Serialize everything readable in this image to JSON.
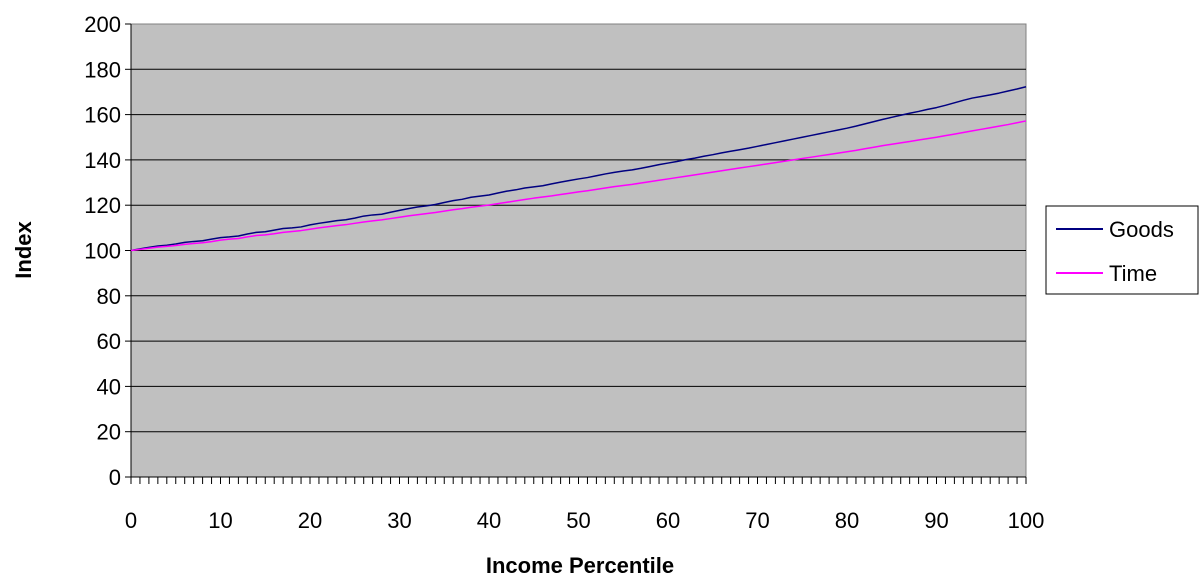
{
  "chart_data": {
    "type": "line",
    "xlabel": "Income Percentile",
    "ylabel": "Index",
    "xlim": [
      0,
      100
    ],
    "ylim": [
      0,
      200
    ],
    "x_ticks": [
      "0",
      "10",
      "20",
      "30",
      "40",
      "50",
      "60",
      "70",
      "80",
      "90",
      "100"
    ],
    "y_ticks": [
      "0",
      "20",
      "40",
      "60",
      "80",
      "100",
      "120",
      "140",
      "160",
      "180",
      "200"
    ],
    "x_minor_tick_step": 1,
    "grid": "horizontal",
    "plot_background": "#c0c0c0",
    "legend_position": "right",
    "x": [
      0,
      1,
      2,
      3,
      4,
      5,
      6,
      7,
      8,
      9,
      10,
      11,
      12,
      13,
      14,
      15,
      16,
      17,
      18,
      19,
      20,
      21,
      22,
      23,
      24,
      25,
      26,
      27,
      28,
      29,
      30,
      31,
      32,
      33,
      34,
      35,
      36,
      37,
      38,
      39,
      40,
      41,
      42,
      43,
      44,
      45,
      46,
      47,
      48,
      49,
      50,
      51,
      52,
      53,
      54,
      55,
      56,
      57,
      58,
      59,
      60,
      61,
      62,
      63,
      64,
      65,
      66,
      67,
      68,
      69,
      70,
      71,
      72,
      73,
      74,
      75,
      76,
      77,
      78,
      79,
      80,
      81,
      82,
      83,
      84,
      85,
      86,
      87,
      88,
      89,
      90,
      91,
      92,
      93,
      94,
      95,
      96,
      97,
      98,
      99,
      100
    ],
    "series": [
      {
        "name": "Goods",
        "color": "#000080",
        "values": [
          100.0,
          100.7,
          101.4,
          102.0,
          102.3,
          102.9,
          103.6,
          104.0,
          104.3,
          105.0,
          105.7,
          106.0,
          106.4,
          107.3,
          108.0,
          108.3,
          109.0,
          109.7,
          110.0,
          110.4,
          111.3,
          112.0,
          112.6,
          113.2,
          113.6,
          114.3,
          115.2,
          115.7,
          116.0,
          116.9,
          117.7,
          118.5,
          119.2,
          119.7,
          120.3,
          121.2,
          122.0,
          122.6,
          123.5,
          124.0,
          124.5,
          125.4,
          126.2,
          126.8,
          127.6,
          128.1,
          128.6,
          129.4,
          130.2,
          130.9,
          131.6,
          132.2,
          133.0,
          133.8,
          134.5,
          135.1,
          135.6,
          136.3,
          137.1,
          137.9,
          138.6,
          139.3,
          140.1,
          140.8,
          141.6,
          142.3,
          143.1,
          143.8,
          144.5,
          145.2,
          146.0,
          146.8,
          147.6,
          148.4,
          149.2,
          150.0,
          150.8,
          151.6,
          152.4,
          153.2,
          154.0,
          154.9,
          155.9,
          156.9,
          157.9,
          158.8,
          159.7,
          160.6,
          161.4,
          162.3,
          163.1,
          164.1,
          165.2,
          166.3,
          167.3,
          168.0,
          168.7,
          169.5,
          170.4,
          171.3,
          172.3
        ]
      },
      {
        "name": "Time",
        "color": "#ff00ff",
        "values": [
          100.0,
          100.5,
          101.0,
          101.5,
          101.8,
          102.2,
          102.7,
          103.1,
          103.4,
          103.9,
          104.6,
          105.0,
          105.3,
          106.0,
          106.6,
          106.9,
          107.4,
          108.0,
          108.4,
          108.8,
          109.4,
          110.0,
          110.5,
          111.0,
          111.4,
          112.0,
          112.6,
          113.1,
          113.5,
          114.1,
          114.7,
          115.3,
          115.8,
          116.3,
          116.8,
          117.4,
          118.0,
          118.5,
          119.1,
          119.6,
          120.1,
          120.7,
          121.3,
          121.9,
          122.5,
          123.1,
          123.6,
          124.1,
          124.7,
          125.3,
          125.9,
          126.4,
          127.0,
          127.6,
          128.2,
          128.7,
          129.2,
          129.8,
          130.4,
          131.0,
          131.6,
          132.2,
          132.8,
          133.4,
          134.0,
          134.6,
          135.2,
          135.8,
          136.4,
          137.0,
          137.6,
          138.2,
          138.8,
          139.4,
          140.0,
          140.6,
          141.2,
          141.8,
          142.4,
          143.0,
          143.6,
          144.2,
          144.9,
          145.6,
          146.3,
          146.9,
          147.5,
          148.1,
          148.8,
          149.4,
          150.0,
          150.7,
          151.4,
          152.1,
          152.8,
          153.5,
          154.2,
          154.9,
          155.6,
          156.4,
          157.2
        ]
      }
    ]
  }
}
